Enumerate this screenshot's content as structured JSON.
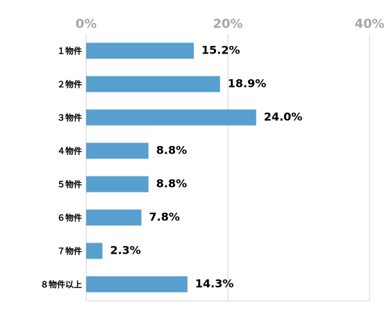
{
  "chart_data": {
    "type": "bar",
    "orientation": "horizontal",
    "categories": [
      "１物件",
      "２物件",
      "３物件",
      "４物件",
      "５物件",
      "６物件",
      "７物件",
      "８物件以上"
    ],
    "values": [
      15.2,
      18.9,
      24.0,
      8.8,
      8.8,
      7.8,
      2.3,
      14.3
    ],
    "value_labels": [
      "15.2%",
      "18.9%",
      "24.0%",
      "8.8%",
      "8.8%",
      "7.8%",
      "2.3%",
      "14.3%"
    ],
    "color": "#579fcf",
    "xlim": [
      0,
      40
    ],
    "xticks": [
      {
        "value": 0,
        "label": "0%"
      },
      {
        "value": 20,
        "label": "20%"
      },
      {
        "value": 40,
        "label": "40%"
      }
    ],
    "grid": true
  }
}
